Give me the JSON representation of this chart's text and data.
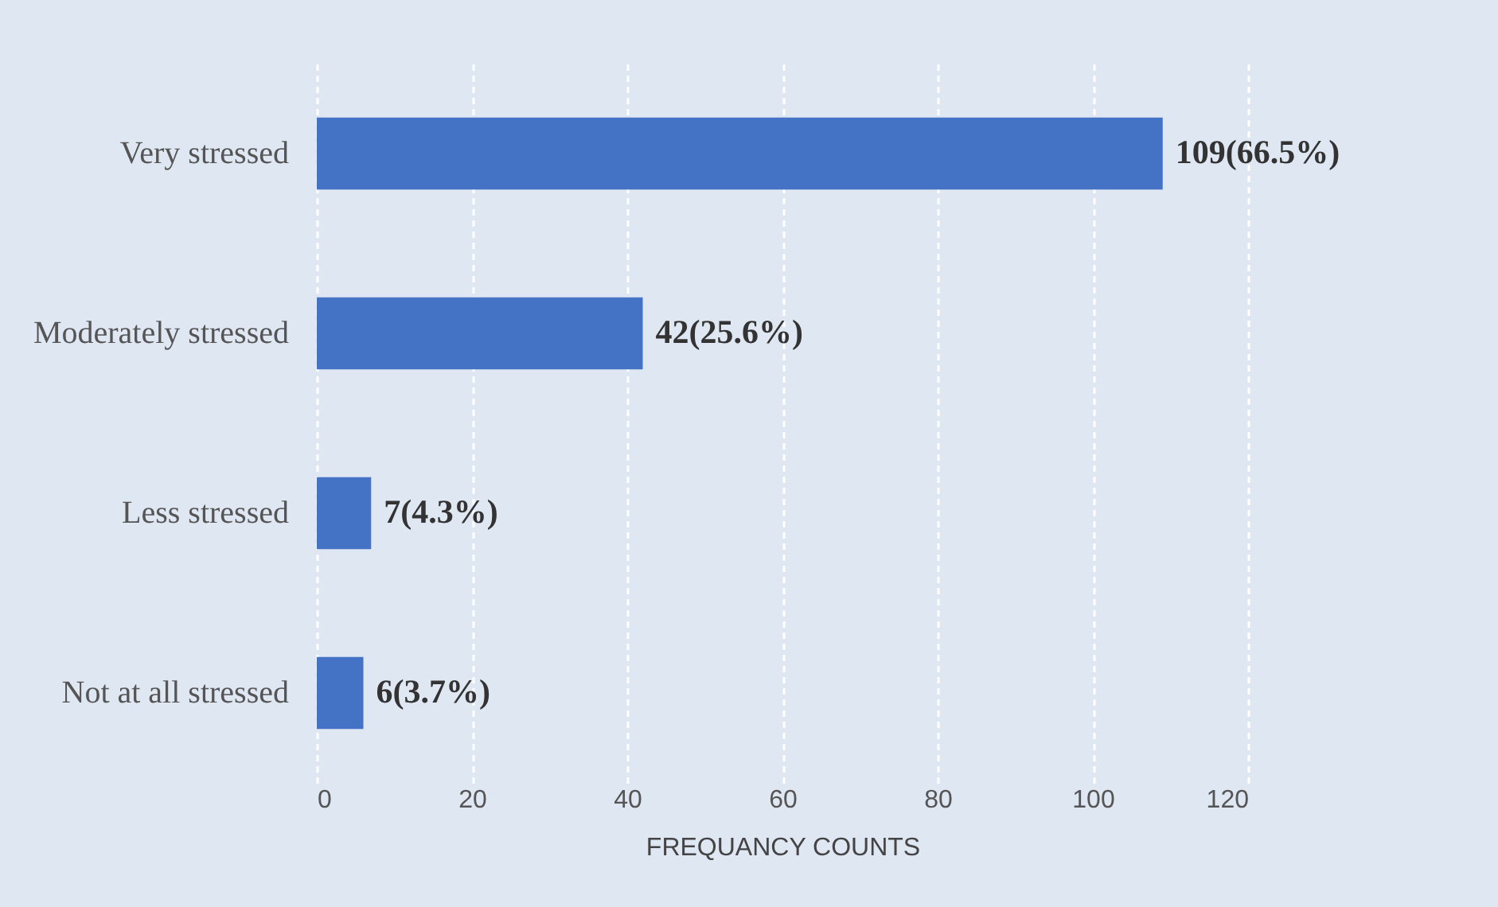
{
  "chart_data": {
    "type": "bar",
    "orientation": "horizontal",
    "categories": [
      "Very stressed",
      "Moderately stressed",
      "Less stressed",
      "Not at all stressed"
    ],
    "values": [
      109,
      42,
      7,
      6
    ],
    "value_labels": [
      "109(66.5%)",
      "42(25.6%)",
      "7(4.3%)",
      "6(3.7%)"
    ],
    "color": "#4472c4",
    "xlabel": "FREQUANCY COUNTS",
    "xlim": [
      0,
      120
    ],
    "xticks": [
      0,
      20,
      40,
      60,
      80,
      100,
      120
    ],
    "grid": "x"
  }
}
